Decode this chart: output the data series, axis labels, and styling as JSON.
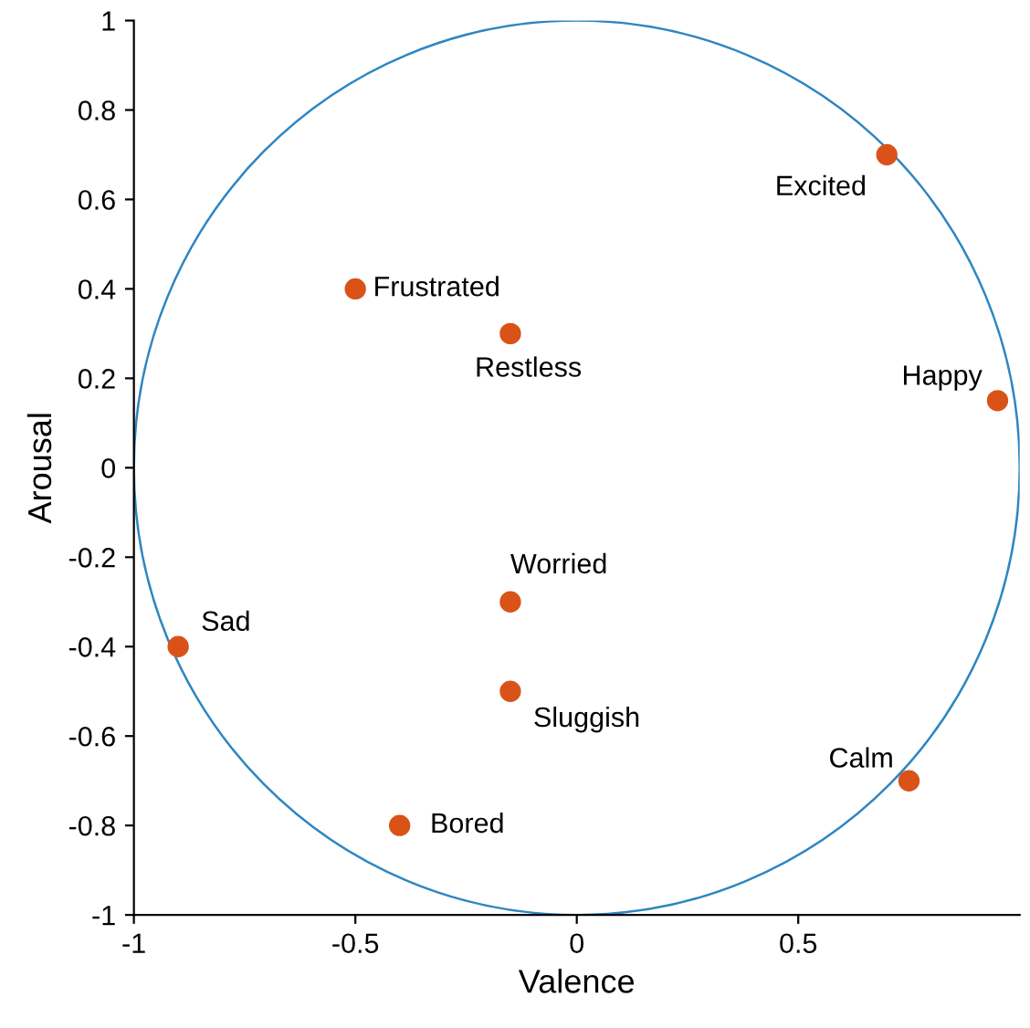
{
  "chart_data": {
    "type": "scatter",
    "xlabel": "Valence",
    "ylabel": "Arousal",
    "xlim": [
      -1,
      1
    ],
    "ylim": [
      -1,
      1
    ],
    "xticks": [
      -1,
      -0.5,
      0,
      0.5
    ],
    "yticks": [
      -1,
      -0.8,
      -0.6,
      -0.4,
      -0.2,
      0,
      0.2,
      0.4,
      0.6,
      0.8,
      1
    ],
    "grid": false,
    "legend": false,
    "marker": "circle",
    "series": [
      {
        "color": "#d95319",
        "x": [
          0.7,
          0.95,
          -0.5,
          -0.15,
          -0.15,
          -0.9,
          -0.15,
          0.75,
          -0.4
        ],
        "values": [
          0.7,
          0.15,
          0.4,
          0.3,
          -0.3,
          -0.4,
          -0.5,
          -0.7,
          -0.8
        ]
      }
    ],
    "annotations": [
      {
        "text": "Excited",
        "x": 0.7,
        "y": 0.7
      },
      {
        "text": "Happy",
        "x": 0.95,
        "y": 0.15
      },
      {
        "text": "Frustrated",
        "x": -0.5,
        "y": 0.4
      },
      {
        "text": "Restless",
        "x": -0.15,
        "y": 0.3
      },
      {
        "text": "Worried",
        "x": -0.15,
        "y": -0.3
      },
      {
        "text": "Sad",
        "x": -0.9,
        "y": -0.4
      },
      {
        "text": "Sluggish",
        "x": -0.15,
        "y": -0.5
      },
      {
        "text": "Calm",
        "x": 0.75,
        "y": -0.7
      },
      {
        "text": "Bored",
        "x": -0.4,
        "y": -0.8
      }
    ]
  }
}
